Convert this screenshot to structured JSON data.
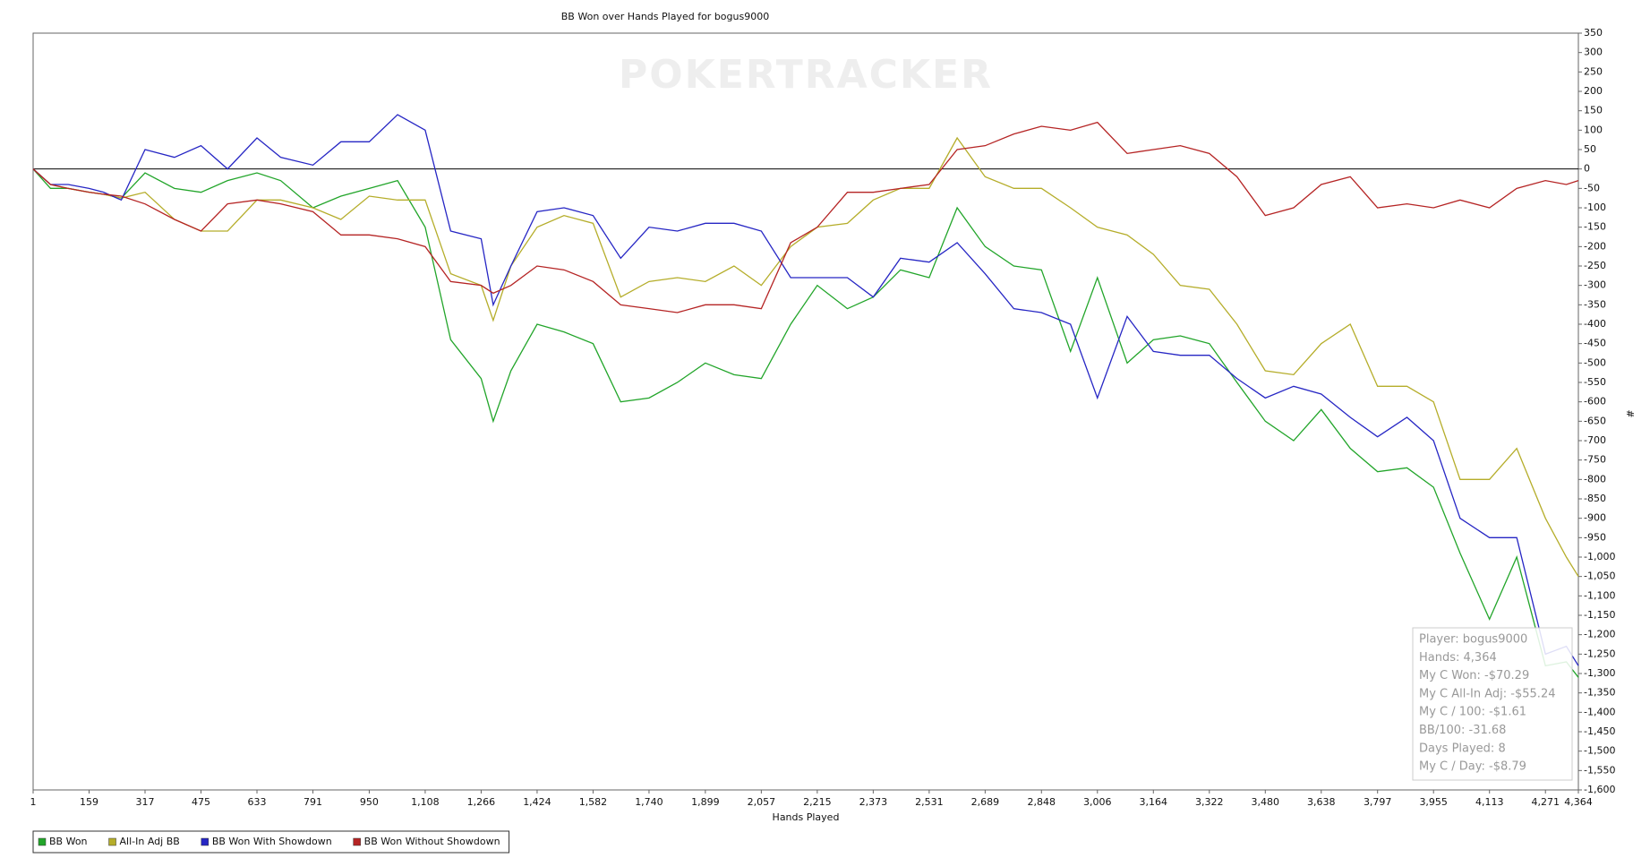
{
  "chart_data": {
    "type": "line",
    "title": "BB Won over Hands Played for bogus9000",
    "watermark": "POKERTRACKER",
    "x_label": "Hands Played",
    "y_label": "#",
    "x": [
      1,
      50,
      100,
      159,
      200,
      250,
      317,
      400,
      475,
      550,
      633,
      700,
      791,
      870,
      950,
      1030,
      1108,
      1180,
      1266,
      1300,
      1350,
      1424,
      1500,
      1582,
      1660,
      1740,
      1820,
      1899,
      1980,
      2057,
      2140,
      2215,
      2300,
      2373,
      2450,
      2531,
      2610,
      2689,
      2770,
      2848,
      2930,
      3006,
      3090,
      3164,
      3240,
      3322,
      3400,
      3480,
      3560,
      3638,
      3720,
      3797,
      3880,
      3955,
      4030,
      4113,
      4190,
      4271,
      4330,
      4364
    ],
    "series": [
      {
        "name": "BB Won",
        "color": "#22a52a",
        "values": [
          0,
          -50,
          -50,
          -60,
          -65,
          -75,
          -10,
          -50,
          -60,
          -30,
          -10,
          -30,
          -100,
          -70,
          -50,
          -30,
          -150,
          -440,
          -540,
          -650,
          -520,
          -400,
          -420,
          -450,
          -600,
          -590,
          -550,
          -500,
          -530,
          -540,
          -400,
          -300,
          -360,
          -330,
          -260,
          -280,
          -100,
          -200,
          -250,
          -260,
          -470,
          -280,
          -500,
          -440,
          -430,
          -450,
          -550,
          -650,
          -700,
          -620,
          -720,
          -780,
          -770,
          -820,
          -990,
          -1160,
          -1000,
          -1280,
          -1270,
          -1310
        ]
      },
      {
        "name": "All-In Adj BB",
        "color": "#b5ad2a",
        "values": [
          0,
          -40,
          -50,
          -60,
          -65,
          -75,
          -60,
          -130,
          -160,
          -160,
          -80,
          -80,
          -100,
          -130,
          -70,
          -80,
          -80,
          -270,
          -300,
          -390,
          -250,
          -150,
          -120,
          -140,
          -330,
          -290,
          -280,
          -290,
          -250,
          -300,
          -200,
          -150,
          -140,
          -80,
          -50,
          -50,
          80,
          -20,
          -50,
          -50,
          -100,
          -150,
          -170,
          -220,
          -300,
          -310,
          -400,
          -520,
          -530,
          -450,
          -400,
          -560,
          -560,
          -600,
          -800,
          -800,
          -720,
          -900,
          -1000,
          -1050
        ]
      },
      {
        "name": "BB Won With Showdown",
        "color": "#2626c4",
        "values": [
          0,
          -40,
          -40,
          -50,
          -60,
          -80,
          50,
          30,
          60,
          0,
          80,
          30,
          10,
          70,
          70,
          140,
          100,
          -160,
          -180,
          -350,
          -250,
          -110,
          -100,
          -120,
          -230,
          -150,
          -160,
          -140,
          -140,
          -160,
          -280,
          -280,
          -280,
          -330,
          -230,
          -240,
          -190,
          -270,
          -360,
          -370,
          -400,
          -590,
          -380,
          -470,
          -480,
          -480,
          -540,
          -590,
          -560,
          -580,
          -640,
          -690,
          -640,
          -700,
          -900,
          -950,
          -950,
          -1250,
          -1230,
          -1280
        ]
      },
      {
        "name": "BB Won Without Showdown",
        "color": "#b52424",
        "values": [
          0,
          -40,
          -50,
          -60,
          -65,
          -70,
          -90,
          -130,
          -160,
          -90,
          -80,
          -90,
          -110,
          -170,
          -170,
          -180,
          -200,
          -290,
          -300,
          -320,
          -300,
          -250,
          -260,
          -290,
          -350,
          -360,
          -370,
          -350,
          -350,
          -360,
          -190,
          -150,
          -60,
          -60,
          -50,
          -40,
          50,
          60,
          90,
          110,
          100,
          120,
          40,
          50,
          60,
          40,
          -20,
          -120,
          -100,
          -40,
          -20,
          -100,
          -90,
          -100,
          -80,
          -100,
          -50,
          -30,
          -40,
          -30
        ]
      }
    ],
    "xlim": [
      1,
      4364
    ],
    "xticks": [
      1,
      159,
      317,
      475,
      633,
      791,
      950,
      {
        "value": 1108,
        "label": "1,108"
      },
      {
        "value": 1266,
        "label": "1,266"
      },
      {
        "value": 1424,
        "label": "1,424"
      },
      {
        "value": 1582,
        "label": "1,582"
      },
      {
        "value": 1740,
        "label": "1,740"
      },
      {
        "value": 1899,
        "label": "1,899"
      },
      {
        "value": 2057,
        "label": "2,057"
      },
      {
        "value": 2215,
        "label": "2,215"
      },
      {
        "value": 2373,
        "label": "2,373"
      },
      {
        "value": 2531,
        "label": "2,531"
      },
      {
        "value": 2689,
        "label": "2,689"
      },
      {
        "value": 2848,
        "label": "2,848"
      },
      {
        "value": 3006,
        "label": "3,006"
      },
      {
        "value": 3164,
        "label": "3,164"
      },
      {
        "value": 3322,
        "label": "3,322"
      },
      {
        "value": 3480,
        "label": "3,480"
      },
      {
        "value": 3638,
        "label": "3,638"
      },
      {
        "value": 3797,
        "label": "3,797"
      },
      {
        "value": 3955,
        "label": "3,955"
      },
      {
        "value": 4113,
        "label": "4,113"
      },
      {
        "value": 4271,
        "label": "4,271"
      },
      {
        "value": 4364,
        "label": "4,364"
      }
    ],
    "ylim": [
      -1600,
      350
    ],
    "yticks": [
      350,
      300,
      250,
      200,
      150,
      100,
      50,
      0,
      -50,
      -100,
      -150,
      -200,
      -250,
      -300,
      -350,
      -400,
      -450,
      -500,
      -550,
      -600,
      -650,
      -700,
      -750,
      -800,
      -850,
      -900,
      -950,
      {
        "value": -1000,
        "label": "-1,000"
      },
      {
        "value": -1050,
        "label": "-1,050"
      },
      {
        "value": -1100,
        "label": "-1,100"
      },
      {
        "value": -1150,
        "label": "-1,150"
      },
      {
        "value": -1200,
        "label": "-1,200"
      },
      {
        "value": -1250,
        "label": "-1,250"
      },
      {
        "value": -1300,
        "label": "-1,300"
      },
      {
        "value": -1350,
        "label": "-1,350"
      },
      {
        "value": -1400,
        "label": "-1,400"
      },
      {
        "value": -1450,
        "label": "-1,450"
      },
      {
        "value": -1500,
        "label": "-1,500"
      },
      {
        "value": -1550,
        "label": "-1,550"
      },
      {
        "value": -1600,
        "label": "-1,600"
      }
    ],
    "grid": false,
    "legend": "bottom-left",
    "tooltip": [
      "Player: bogus9000",
      "Hands: 4,364",
      "My C Won: -$70.29",
      "My C All-In Adj: -$55.24",
      "My C / 100: -$1.61",
      "BB/100: -31.68",
      "Days Played: 8",
      "My C / Day: -$8.79"
    ]
  }
}
